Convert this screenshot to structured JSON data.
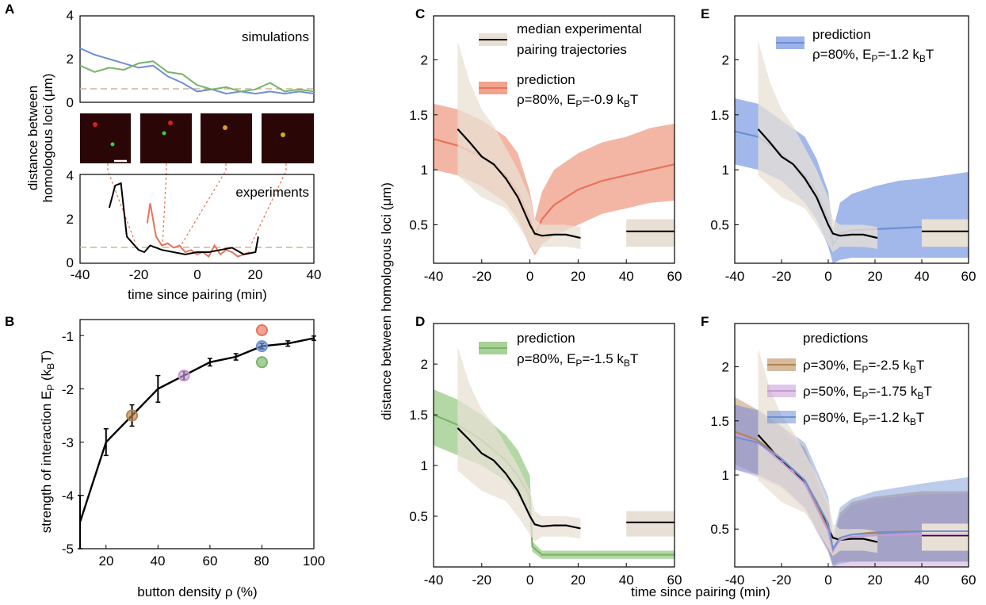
{
  "colors": {
    "experiment": "#000000",
    "experiment_band": "#e8e0d4",
    "red": "#e9735a",
    "red_band": "#f0a48f",
    "blue": "#6e8fd3",
    "blue_band": "#9db4ea",
    "green": "#79b468",
    "green_band": "#a7d195",
    "brown": "#b3834f",
    "purple": "#c59ad3",
    "dashed": "#cbb59a"
  },
  "panels": {
    "A": {
      "letter": "A"
    },
    "B": {
      "letter": "B"
    },
    "C": {
      "letter": "C"
    },
    "D": {
      "letter": "D"
    },
    "E": {
      "letter": "E"
    },
    "F": {
      "letter": "F"
    }
  },
  "panel_A": {
    "ylabel_line1": "distance between",
    "ylabel_line2": "homologous loci (μm)",
    "xlabel": "time since pairing (min)",
    "sim_label": "simulations",
    "exp_label": "experiments",
    "sim_yticks": [
      "0",
      "2",
      "4"
    ],
    "exp_yticks": [
      "0",
      "2",
      "4"
    ],
    "xticks": [
      "-40",
      "-20",
      "0",
      "20",
      "40"
    ]
  },
  "panel_B": {
    "ylabel_main": "strength of interaction E",
    "ylabel_sub": "P",
    "ylabel_unit": " (k",
    "ylabel_unit_sub": "B",
    "ylabel_end": "T)",
    "xlabel": "button density ρ (%)",
    "yticks": [
      "-1",
      "-2",
      "-3",
      "-4",
      "-5"
    ],
    "xticks": [
      "20",
      "40",
      "60",
      "80",
      "100"
    ]
  },
  "shared": {
    "ylabel": "distance between homologous loci (μm)",
    "xlabel": "time since pairing (min)",
    "xticks": [
      "-40",
      "-20",
      "0",
      "20",
      "40",
      "60"
    ],
    "yticks": [
      "0.5",
      "1",
      "1.5",
      "2"
    ]
  },
  "legends": {
    "C_exp_line1": "median experimental",
    "C_exp_line2": "pairing trajectories",
    "C_pred_title": "prediction",
    "C_pred_text": "ρ=80%, E",
    "C_pred_val": "=-0.9 k",
    "D_pred_title": "prediction",
    "D_pred_text": "ρ=80%, E",
    "D_pred_val": "=-1.5 k",
    "E_pred_title": "prediction",
    "E_pred_text": "ρ=80%, E",
    "E_pred_val": "=-1.2 k",
    "F_title": "predictions",
    "F_1_text": "ρ=30%, E",
    "F_1_val": "=-2.5 k",
    "F_2_text": "ρ=50%, E",
    "F_2_val": "=-1.75 k",
    "F_3_text": "ρ=80%, E",
    "F_3_val": "=-1.2 k",
    "sub_P": "P",
    "sub_B": "B",
    "unit_T": "T"
  },
  "chart_data": [
    {
      "panel": "A-top",
      "type": "line",
      "text": "simulations",
      "ylabel": "distance between homologous loci (μm)",
      "xlim": [
        -40,
        40
      ],
      "ylim": [
        0,
        4
      ],
      "reference_line_y": 0.7,
      "series": [
        {
          "color": "blue",
          "x": [
            -40,
            -35,
            -30,
            -25,
            -20,
            -15,
            -10,
            -5,
            0,
            5,
            10,
            15,
            20,
            25,
            30,
            35,
            40
          ],
          "y": [
            2.5,
            2.2,
            2.0,
            1.8,
            1.6,
            1.7,
            1.2,
            0.9,
            0.5,
            0.6,
            0.4,
            0.5,
            0.4,
            0.5,
            0.4,
            0.5,
            0.4
          ]
        },
        {
          "color": "green",
          "x": [
            -40,
            -35,
            -30,
            -25,
            -20,
            -15,
            -10,
            -5,
            0,
            5,
            10,
            15,
            20,
            25,
            30,
            35,
            40
          ],
          "y": [
            1.7,
            1.4,
            1.6,
            1.5,
            1.8,
            1.9,
            1.4,
            1.3,
            0.8,
            0.6,
            0.7,
            0.5,
            0.6,
            0.9,
            0.5,
            0.6,
            0.5
          ]
        }
      ]
    },
    {
      "panel": "A-bottom",
      "type": "line",
      "text": "experiments",
      "xlabel": "time since pairing (min)",
      "xlim": [
        -40,
        40
      ],
      "ylim": [
        0,
        4
      ],
      "reference_line_y": 0.7,
      "series": [
        {
          "color": "black",
          "x": [
            -30,
            -28,
            -26,
            -24,
            -22,
            -20,
            -18,
            -16,
            -12,
            -8,
            -4,
            0,
            4,
            8,
            12,
            16,
            20,
            21
          ],
          "y": [
            2.5,
            3.5,
            3.6,
            1.2,
            0.9,
            0.6,
            0.5,
            0.8,
            0.6,
            0.5,
            0.4,
            0.5,
            0.5,
            0.6,
            0.7,
            0.4,
            0.5,
            1.2
          ]
        },
        {
          "color": "red",
          "x": [
            -17,
            -16,
            -14,
            -12,
            -10,
            -8,
            -6,
            -4,
            -2,
            0,
            2,
            4,
            6,
            8,
            10,
            12,
            14,
            16,
            18
          ],
          "y": [
            1.8,
            2.7,
            1.2,
            0.8,
            0.9,
            0.7,
            0.8,
            0.5,
            0.6,
            0.4,
            0.5,
            0.3,
            0.8,
            0.4,
            0.6,
            0.5,
            0.3,
            0.4,
            0.5
          ]
        }
      ]
    },
    {
      "panel": "B",
      "type": "line",
      "xlabel": "button density ρ (%)",
      "ylabel": "strength of interaction E_P (k_B T)",
      "xlim": [
        10,
        100
      ],
      "ylim": [
        -5,
        -0.7
      ],
      "series": [
        {
          "color": "black",
          "x": [
            10,
            20,
            30,
            40,
            50,
            60,
            70,
            80,
            90,
            100
          ],
          "y": [
            -4.5,
            -3.0,
            -2.5,
            -2.0,
            -1.75,
            -1.5,
            -1.4,
            -1.2,
            -1.15,
            -1.05
          ],
          "err": [
            0.5,
            0.25,
            0.2,
            0.25,
            0.08,
            0.07,
            0.06,
            0.05,
            0.05,
            0.04
          ]
        }
      ],
      "markers": [
        {
          "x": 30,
          "y": -2.5,
          "color": "brown"
        },
        {
          "x": 50,
          "y": -1.75,
          "color": "purple"
        },
        {
          "x": 80,
          "y": -0.9,
          "color": "red"
        },
        {
          "x": 80,
          "y": -1.2,
          "color": "blue"
        },
        {
          "x": 80,
          "y": -1.5,
          "color": "green"
        }
      ]
    },
    {
      "panel": "C",
      "type": "area",
      "xlim": [
        -40,
        60
      ],
      "ylim": [
        0.15,
        2.4
      ],
      "experiment": {
        "x": [
          -30,
          -25,
          -20,
          -15,
          -10,
          -5,
          0,
          2,
          5,
          10,
          15,
          21
        ],
        "y": [
          1.37,
          1.25,
          1.12,
          1.05,
          0.92,
          0.75,
          0.5,
          0.42,
          0.4,
          0.41,
          0.41,
          0.38
        ],
        "upper": [
          2.17,
          1.8,
          1.55,
          1.4,
          1.2,
          1.0,
          0.75,
          0.55,
          0.5,
          0.5,
          0.5,
          0.48
        ],
        "lower": [
          0.95,
          0.85,
          0.75,
          0.7,
          0.65,
          0.5,
          0.32,
          0.25,
          0.3,
          0.3,
          0.3,
          0.28
        ],
        "steady_state": {
          "x": [
            40,
            60
          ],
          "y": 0.44,
          "lower": 0.3,
          "upper": 0.55
        }
      },
      "prediction": {
        "name": "prediction ρ=80%, E_P=-0.9 k_BT",
        "color": "red",
        "x": [
          -40,
          -30,
          -20,
          -10,
          -5,
          0,
          2,
          5,
          10,
          20,
          30,
          40,
          50,
          60
        ],
        "y": [
          1.28,
          1.22,
          1.12,
          0.95,
          0.8,
          0.55,
          0.4,
          0.55,
          0.68,
          0.82,
          0.9,
          0.95,
          1.0,
          1.05
        ],
        "upper": [
          1.6,
          1.55,
          1.45,
          1.3,
          1.15,
          0.8,
          0.55,
          0.8,
          1.0,
          1.15,
          1.25,
          1.3,
          1.38,
          1.42
        ],
        "lower": [
          1.0,
          0.95,
          0.85,
          0.7,
          0.55,
          0.3,
          0.22,
          0.32,
          0.4,
          0.5,
          0.6,
          0.65,
          0.7,
          0.72
        ]
      }
    },
    {
      "panel": "D",
      "type": "area",
      "xlim": [
        -40,
        60
      ],
      "ylim": [
        0.0,
        2.4
      ],
      "prediction": {
        "name": "prediction ρ=80%, E_P=-1.5 k_BT",
        "color": "green",
        "x": [
          -40,
          -30,
          -20,
          -10,
          -5,
          0,
          1,
          5,
          10,
          20,
          40,
          60
        ],
        "y": [
          1.5,
          1.4,
          1.25,
          1.05,
          0.9,
          0.7,
          0.2,
          0.12,
          0.12,
          0.12,
          0.12,
          0.12
        ],
        "upper": [
          1.75,
          1.65,
          1.5,
          1.3,
          1.15,
          0.9,
          0.25,
          0.16,
          0.16,
          0.16,
          0.16,
          0.16
        ],
        "lower": [
          1.2,
          1.1,
          1.0,
          0.85,
          0.7,
          0.5,
          0.15,
          0.08,
          0.08,
          0.08,
          0.08,
          0.08
        ]
      }
    },
    {
      "panel": "E",
      "type": "area",
      "xlim": [
        -40,
        60
      ],
      "ylim": [
        0.15,
        2.4
      ],
      "prediction": {
        "name": "prediction ρ=80%, E_P=-1.2 k_BT",
        "color": "blue",
        "x": [
          -40,
          -30,
          -20,
          -10,
          -5,
          0,
          2,
          5,
          10,
          20,
          30,
          40,
          50,
          60
        ],
        "y": [
          1.35,
          1.3,
          1.15,
          0.95,
          0.8,
          0.55,
          0.32,
          0.42,
          0.45,
          0.46,
          0.47,
          0.48,
          0.48,
          0.48
        ],
        "upper": [
          1.65,
          1.6,
          1.45,
          1.3,
          1.1,
          0.8,
          0.45,
          0.7,
          0.78,
          0.85,
          0.9,
          0.92,
          0.95,
          0.98
        ],
        "lower": [
          1.05,
          1.0,
          0.9,
          0.7,
          0.55,
          0.3,
          0.15,
          0.18,
          0.2,
          0.2,
          0.2,
          0.2,
          0.2,
          0.2
        ]
      }
    },
    {
      "panel": "F",
      "type": "area",
      "xlim": [
        -40,
        60
      ],
      "ylim": [
        0.15,
        2.4
      ],
      "predictions": [
        {
          "name": "ρ=30%, E_P=-2.5 k_BT",
          "color": "brown",
          "x": [
            -40,
            -30,
            -20,
            -10,
            0,
            2,
            5,
            10,
            20,
            40,
            60
          ],
          "y": [
            1.4,
            1.32,
            1.15,
            0.95,
            0.5,
            0.3,
            0.42,
            0.45,
            0.47,
            0.48,
            0.48
          ],
          "upper": [
            1.72,
            1.6,
            1.45,
            1.25,
            0.7,
            0.4,
            0.65,
            0.75,
            0.8,
            0.85,
            0.85
          ],
          "lower": [
            1.1,
            1.0,
            0.9,
            0.7,
            0.3,
            0.17,
            0.2,
            0.2,
            0.2,
            0.2,
            0.2
          ]
        },
        {
          "name": "ρ=50%, E_P=-1.75 k_BT",
          "color": "purple",
          "x": [
            -40,
            -30,
            -20,
            -10,
            0,
            2,
            5,
            10,
            20,
            40,
            60
          ],
          "y": [
            1.38,
            1.3,
            1.12,
            0.92,
            0.48,
            0.3,
            0.4,
            0.43,
            0.44,
            0.45,
            0.45
          ],
          "upper": [
            1.65,
            1.58,
            1.42,
            1.2,
            0.68,
            0.4,
            0.6,
            0.72,
            0.78,
            0.82,
            0.83
          ],
          "lower": [
            1.05,
            0.98,
            0.88,
            0.68,
            0.28,
            0.15,
            0.15,
            0.15,
            0.15,
            0.15,
            0.15
          ]
        },
        {
          "name": "ρ=80%, E_P=-1.2 k_BT",
          "color": "blue",
          "x": [
            -40,
            -30,
            -20,
            -10,
            0,
            2,
            5,
            10,
            20,
            40,
            60
          ],
          "y": [
            1.35,
            1.3,
            1.15,
            0.95,
            0.55,
            0.32,
            0.42,
            0.45,
            0.46,
            0.48,
            0.48
          ],
          "upper": [
            1.65,
            1.6,
            1.45,
            1.3,
            0.8,
            0.45,
            0.7,
            0.78,
            0.85,
            0.92,
            0.98
          ],
          "lower": [
            1.05,
            1.0,
            0.9,
            0.7,
            0.3,
            0.15,
            0.18,
            0.2,
            0.2,
            0.2,
            0.2
          ]
        }
      ]
    }
  ]
}
